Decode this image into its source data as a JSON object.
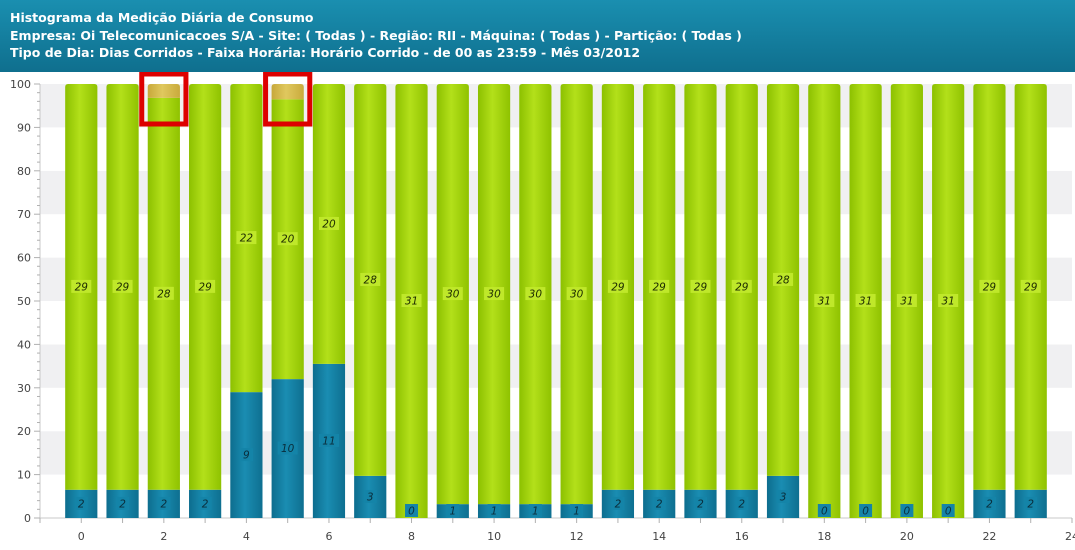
{
  "header": {
    "line1": "Histograma da Medição Diária de Consumo",
    "line2": "Empresa: Oi Telecomunicacoes S/A - Site: ( Todas ) - Região: RII - Máquina: ( Todas ) - Partição: ( Todas )",
    "line3": "Tipo de Dia: Dias Corridos - Faixa Horária: Horário Corrido - de 00 as 23:59 - Mês 03/2012"
  },
  "colors": {
    "blue": "#137fa3",
    "green": "#a2d30a",
    "yellow": "#d3b84a",
    "highlight": "#dd0000"
  },
  "chart_data": {
    "type": "bar",
    "stacked": true,
    "x": [
      0,
      1,
      2,
      3,
      4,
      5,
      6,
      7,
      8,
      9,
      10,
      11,
      12,
      13,
      14,
      15,
      16,
      17,
      18,
      19,
      20,
      21,
      22,
      23
    ],
    "xlim": [
      -1,
      24
    ],
    "xticks": [
      0,
      2,
      4,
      6,
      8,
      10,
      12,
      14,
      16,
      18,
      20,
      22,
      24
    ],
    "ylim": [
      0,
      100
    ],
    "yticks": [
      0,
      10,
      20,
      30,
      40,
      50,
      60,
      70,
      80,
      90,
      100
    ],
    "grid": true,
    "series": [
      {
        "color": "blue",
        "values": [
          6.5,
          6.5,
          6.5,
          6.5,
          29,
          32,
          35.5,
          9.7,
          0,
          3.2,
          3.2,
          3.2,
          3.2,
          6.5,
          6.5,
          6.5,
          6.5,
          9.7,
          0,
          0,
          0,
          0,
          6.5,
          6.5
        ],
        "labels": [
          "2",
          "2",
          "2",
          "2",
          "9",
          "10",
          "11",
          "3",
          "0",
          "1",
          "1",
          "1",
          "1",
          "2",
          "2",
          "2",
          "2",
          "3",
          "0",
          "0",
          "0",
          "0",
          "2",
          "2"
        ]
      },
      {
        "color": "green",
        "values": [
          93.5,
          93.5,
          90.3,
          93.5,
          71,
          64.5,
          64.5,
          90.3,
          100,
          96.8,
          96.8,
          96.8,
          96.8,
          93.5,
          93.5,
          93.5,
          93.5,
          90.3,
          100,
          100,
          100,
          100,
          93.5,
          93.5
        ],
        "labels": [
          "29",
          "29",
          "28",
          "29",
          "22",
          "20",
          "20",
          "28",
          "31",
          "30",
          "30",
          "30",
          "30",
          "29",
          "29",
          "29",
          "29",
          "28",
          "31",
          "31",
          "31",
          "31",
          "29",
          "29"
        ]
      },
      {
        "color": "yellow",
        "values": [
          0,
          0,
          3.2,
          0,
          0,
          3.5,
          0,
          0,
          0,
          0,
          0,
          0,
          0,
          0,
          0,
          0,
          0,
          0,
          0,
          0,
          0,
          0,
          0,
          0
        ],
        "labels": [
          "",
          "",
          "",
          "",
          "",
          "",
          "",
          "",
          "",
          "",
          "",
          "",
          "",
          "",
          "",
          "",
          "",
          "",
          "",
          "",
          "",
          "",
          "",
          ""
        ]
      }
    ],
    "annotations": [
      {
        "type": "box",
        "x": 2
      },
      {
        "type": "box",
        "x": 5
      }
    ]
  }
}
